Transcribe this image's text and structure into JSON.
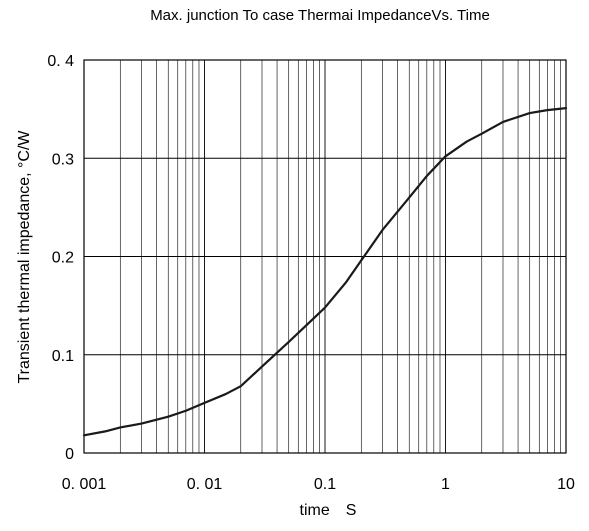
{
  "chart_data": {
    "type": "line",
    "title": "Max. junction To case Thermai ImpedanceVs. Time",
    "xlabel": "time　S",
    "ylabel": "Transient thermal impedance, °C/W",
    "xscale": "log",
    "xlim": [
      0.001,
      10
    ],
    "ylim": [
      0,
      0.4
    ],
    "grid": true,
    "x_tick_labels": [
      "0. 001",
      "0. 01",
      "0.1",
      "1",
      "10"
    ],
    "y_tick_labels": [
      "0",
      "0.1",
      "0.2",
      "0.3",
      "0. 4"
    ],
    "series": [
      {
        "color": "#1a1a1a",
        "x": [
          0.001,
          0.0015,
          0.002,
          0.003,
          0.005,
          0.007,
          0.01,
          0.015,
          0.02,
          0.03,
          0.05,
          0.07,
          0.1,
          0.15,
          0.2,
          0.3,
          0.5,
          0.7,
          1,
          1.5,
          2,
          3,
          5,
          7,
          10
        ],
        "y": [
          0.018,
          0.022,
          0.026,
          0.03,
          0.037,
          0.043,
          0.051,
          0.06,
          0.068,
          0.088,
          0.113,
          0.13,
          0.148,
          0.174,
          0.196,
          0.227,
          0.26,
          0.282,
          0.302,
          0.317,
          0.325,
          0.337,
          0.346,
          0.349,
          0.351
        ]
      }
    ]
  }
}
